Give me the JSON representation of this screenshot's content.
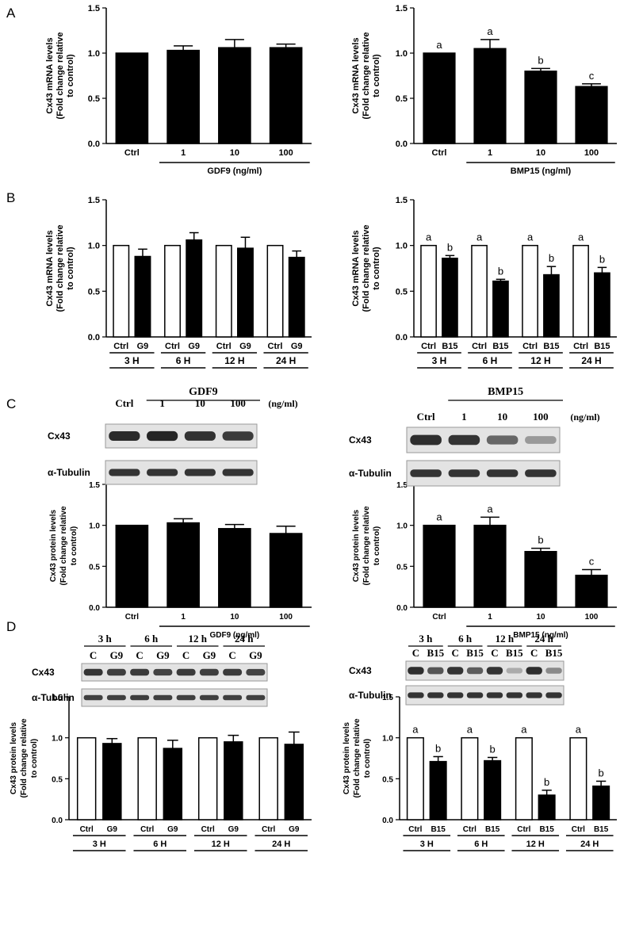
{
  "panels": {
    "A": "A",
    "B": "B",
    "C": "C",
    "D": "D"
  },
  "chart_data": [
    {
      "id": "A-left",
      "type": "bar",
      "categories": [
        "Ctrl",
        "1",
        "10",
        "100"
      ],
      "values": [
        1.0,
        1.03,
        1.06,
        1.06
      ],
      "errors": [
        0,
        0.05,
        0.09,
        0.04
      ],
      "fills": [
        "black",
        "black",
        "black",
        "black"
      ],
      "sig": [
        "",
        "",
        "",
        ""
      ],
      "ylabel": [
        "Cx43 mRNA levels",
        "(Fold change relative",
        "to control)"
      ],
      "ylim": [
        0,
        1.5
      ],
      "yticks": [
        "0.0",
        "0.5",
        "1.0",
        "1.5"
      ],
      "groups": [
        {
          "label": "GDF9 (ng/ml)",
          "from": 1,
          "to": 3
        }
      ]
    },
    {
      "id": "A-right",
      "type": "bar",
      "categories": [
        "Ctrl",
        "1",
        "10",
        "100"
      ],
      "values": [
        1.0,
        1.05,
        0.8,
        0.63
      ],
      "errors": [
        0,
        0.1,
        0.03,
        0.03
      ],
      "fills": [
        "black",
        "black",
        "black",
        "black"
      ],
      "sig": [
        "a",
        "a",
        "b",
        "c"
      ],
      "ylabel": [
        "Cx43 mRNA levels",
        "(Fold change relative",
        "to control)"
      ],
      "ylim": [
        0,
        1.5
      ],
      "yticks": [
        "0.0",
        "0.5",
        "1.0",
        "1.5"
      ],
      "groups": [
        {
          "label": "BMP15 (ng/ml)",
          "from": 1,
          "to": 3
        }
      ]
    },
    {
      "id": "B-left",
      "type": "bar",
      "categories": [
        "Ctrl",
        "G9",
        "Ctrl",
        "G9",
        "Ctrl",
        "G9",
        "Ctrl",
        "G9"
      ],
      "values": [
        1.0,
        0.88,
        1.0,
        1.06,
        1.0,
        0.97,
        1.0,
        0.87
      ],
      "errors": [
        0,
        0.08,
        0,
        0.08,
        0,
        0.12,
        0,
        0.07
      ],
      "fills": [
        "white",
        "black",
        "white",
        "black",
        "white",
        "black",
        "white",
        "black"
      ],
      "sig": [
        "",
        "",
        "",
        "",
        "",
        "",
        "",
        ""
      ],
      "ylabel": [
        "Cx43 mRNA levels",
        "(Fold change relative",
        "to control)"
      ],
      "ylim": [
        0,
        1.5
      ],
      "yticks": [
        "0.0",
        "0.5",
        "1.0",
        "1.5"
      ],
      "pairs": [
        "3 H",
        "6 H",
        "12 H",
        "24 H"
      ]
    },
    {
      "id": "B-right",
      "type": "bar",
      "categories": [
        "Ctrl",
        "B15",
        "Ctrl",
        "B15",
        "Ctrl",
        "B15",
        "Ctrl",
        "B15"
      ],
      "values": [
        1.0,
        0.86,
        1.0,
        0.61,
        1.0,
        0.68,
        1.0,
        0.7
      ],
      "errors": [
        0,
        0.03,
        0,
        0.02,
        0,
        0.09,
        0,
        0.06
      ],
      "fills": [
        "white",
        "black",
        "white",
        "black",
        "white",
        "black",
        "white",
        "black"
      ],
      "sig": [
        "a",
        "b",
        "a",
        "b",
        "a",
        "b",
        "a",
        "b"
      ],
      "ylabel": [
        "Cx43 mRNA levels",
        "(Fold change relative",
        "to control)"
      ],
      "ylim": [
        0,
        1.5
      ],
      "yticks": [
        "0.0",
        "0.5",
        "1.0",
        "1.5"
      ],
      "pairs": [
        "3 H",
        "6 H",
        "12 H",
        "24 H"
      ]
    },
    {
      "id": "C-left",
      "type": "bar",
      "categories": [
        "Ctrl",
        "1",
        "10",
        "100"
      ],
      "values": [
        1.0,
        1.03,
        0.96,
        0.9
      ],
      "errors": [
        0,
        0.05,
        0.05,
        0.09
      ],
      "fills": [
        "black",
        "black",
        "black",
        "black"
      ],
      "sig": [
        "",
        "",
        "",
        ""
      ],
      "ylabel": [
        "Cx43 protein levels",
        "(Fold change relative",
        "to control)"
      ],
      "ylim": [
        0,
        1.5
      ],
      "yticks": [
        "0.0",
        "0.5",
        "1.0",
        "1.5"
      ],
      "groups": [
        {
          "label": "GDF9 (ng/ml)",
          "from": 1,
          "to": 3
        }
      ]
    },
    {
      "id": "C-right",
      "type": "bar",
      "categories": [
        "Ctrl",
        "1",
        "10",
        "100"
      ],
      "values": [
        1.0,
        1.0,
        0.68,
        0.39
      ],
      "errors": [
        0,
        0.1,
        0.04,
        0.07
      ],
      "fills": [
        "black",
        "black",
        "black",
        "black"
      ],
      "sig": [
        "a",
        "a",
        "b",
        "c"
      ],
      "ylabel": [
        "Cx43 protein levels",
        "(Fold change relative",
        "to control)"
      ],
      "ylim": [
        0,
        1.5
      ],
      "yticks": [
        "0.0",
        "0.5",
        "1.0",
        "1.5"
      ],
      "groups": [
        {
          "label": "BMP15 (ng/ml)",
          "from": 1,
          "to": 3
        }
      ]
    },
    {
      "id": "D-left",
      "type": "bar",
      "categories": [
        "Ctrl",
        "G9",
        "Ctrl",
        "G9",
        "Ctrl",
        "G9",
        "Ctrl",
        "G9"
      ],
      "values": [
        1.0,
        0.93,
        1.0,
        0.87,
        1.0,
        0.95,
        1.0,
        0.92
      ],
      "errors": [
        0,
        0.06,
        0,
        0.1,
        0,
        0.08,
        0,
        0.15
      ],
      "fills": [
        "white",
        "black",
        "white",
        "black",
        "white",
        "black",
        "white",
        "black"
      ],
      "sig": [
        "",
        "",
        "",
        "",
        "",
        "",
        "",
        ""
      ],
      "ylabel": [
        "Cx43 protein levels",
        "(Fold change relative",
        "to control)"
      ],
      "ylim": [
        0,
        1.5
      ],
      "yticks": [
        "0.0",
        "0.5",
        "1.0",
        "1.5"
      ],
      "pairs": [
        "3 H",
        "6 H",
        "12 H",
        "24 H"
      ]
    },
    {
      "id": "D-right",
      "type": "bar",
      "categories": [
        "Ctrl",
        "B15",
        "Ctrl",
        "B15",
        "Ctrl",
        "B15",
        "Ctrl",
        "B15"
      ],
      "values": [
        1.0,
        0.71,
        1.0,
        0.72,
        1.0,
        0.3,
        1.0,
        0.41
      ],
      "errors": [
        0,
        0.06,
        0,
        0.04,
        0,
        0.06,
        0,
        0.06
      ],
      "fills": [
        "white",
        "black",
        "white",
        "black",
        "white",
        "black",
        "white",
        "black"
      ],
      "sig": [
        "a",
        "b",
        "a",
        "b",
        "a",
        "b",
        "a",
        "b"
      ],
      "ylabel": [
        "Cx43 protein levels",
        "(Fold change relative",
        "to control)"
      ],
      "ylim": [
        0,
        1.5
      ],
      "yticks": [
        "0.0",
        "0.5",
        "1.0",
        "1.5"
      ],
      "pairs": [
        "3 H",
        "6 H",
        "12 H",
        "24 H"
      ]
    }
  ],
  "blots": [
    {
      "id": "C-left-blot",
      "group_label": "GDF9",
      "unit": "(ng/ml)",
      "lanes": [
        "Ctrl",
        "1",
        "10",
        "100"
      ],
      "rows": [
        "Cx43",
        "α-Tubulin"
      ],
      "intensity": [
        [
          0.9,
          0.92,
          0.86,
          0.82
        ],
        [
          0.85,
          0.85,
          0.85,
          0.85
        ]
      ]
    },
    {
      "id": "C-right-blot",
      "group_label": "BMP15",
      "unit": "(ng/ml)",
      "lanes": [
        "Ctrl",
        "1",
        "10",
        "100"
      ],
      "rows": [
        "Cx43",
        "α-Tubulin"
      ],
      "intensity": [
        [
          0.88,
          0.85,
          0.62,
          0.38
        ],
        [
          0.85,
          0.85,
          0.85,
          0.85
        ]
      ]
    },
    {
      "id": "D-left-blot",
      "times": [
        "3 h",
        "6 h",
        "12 h",
        "24 h"
      ],
      "lanes": [
        "C",
        "G9",
        "C",
        "G9",
        "C",
        "G9",
        "C",
        "G9"
      ],
      "rows": [
        "Cx43",
        "α-Tubulin"
      ],
      "intensity": [
        [
          0.85,
          0.8,
          0.82,
          0.78,
          0.82,
          0.8,
          0.82,
          0.78
        ],
        [
          0.8,
          0.8,
          0.8,
          0.8,
          0.8,
          0.8,
          0.8,
          0.8
        ]
      ]
    },
    {
      "id": "D-right-blot",
      "times": [
        "3 h",
        "6 h",
        "12 h",
        "24 h"
      ],
      "lanes": [
        "C",
        "B15",
        "C",
        "B15",
        "C",
        "B15",
        "C",
        "B15"
      ],
      "rows": [
        "Cx43",
        "α-Tubulin"
      ],
      "intensity": [
        [
          0.88,
          0.7,
          0.85,
          0.66,
          0.85,
          0.3,
          0.88,
          0.45
        ],
        [
          0.85,
          0.85,
          0.85,
          0.85,
          0.85,
          0.85,
          0.85,
          0.85
        ]
      ]
    }
  ]
}
